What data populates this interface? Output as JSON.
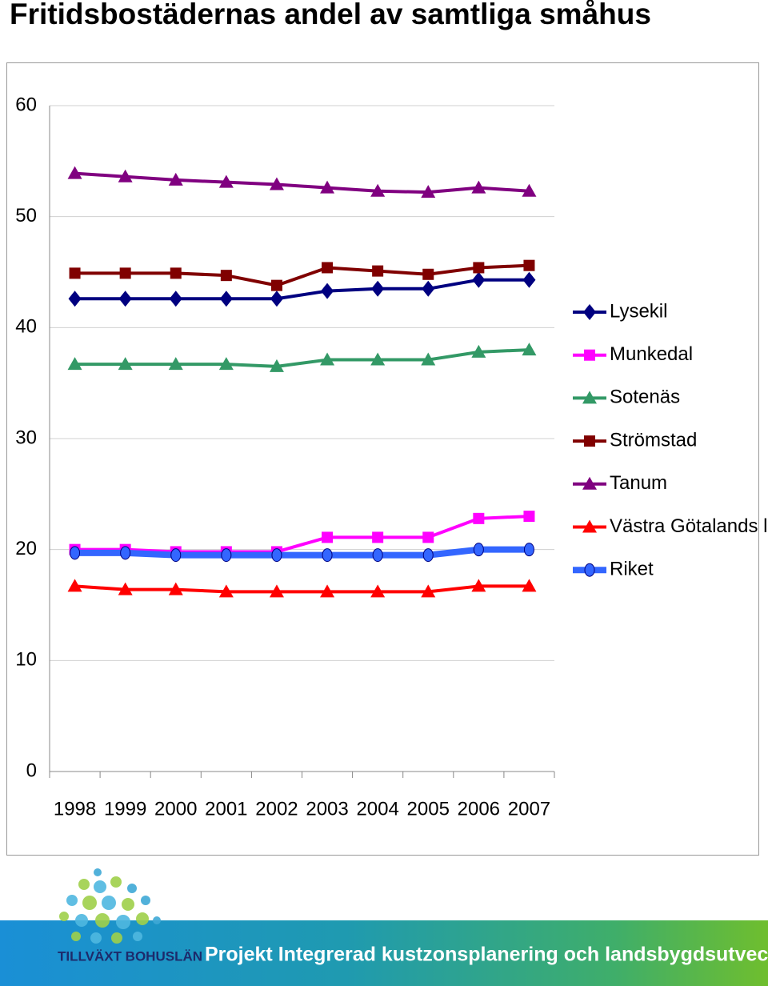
{
  "chart_data": {
    "type": "line",
    "title": "Fritidsbostädernas andel av samtliga småhus",
    "categories": [
      "1998",
      "1999",
      "2000",
      "2001",
      "2002",
      "2003",
      "2004",
      "2005",
      "2006",
      "2007"
    ],
    "ylim": [
      0,
      60
    ],
    "yticks": [
      0,
      10,
      20,
      30,
      40,
      50,
      60
    ],
    "grid": true,
    "legend": "right",
    "series": [
      {
        "name": "Lysekil",
        "color": "#000080",
        "marker": "diamond",
        "values": [
          42.6,
          42.6,
          42.6,
          42.6,
          42.6,
          43.3,
          43.5,
          43.5,
          44.3,
          44.3
        ]
      },
      {
        "name": "Munkedal",
        "color": "#ff00ff",
        "marker": "square",
        "values": [
          20.0,
          20.0,
          19.8,
          19.8,
          19.8,
          21.1,
          21.1,
          21.1,
          22.8,
          23.0
        ]
      },
      {
        "name": "Sotenäs",
        "color": "#339966",
        "marker": "triangle",
        "values": [
          36.7,
          36.7,
          36.7,
          36.7,
          36.5,
          37.1,
          37.1,
          37.1,
          37.8,
          38.0
        ]
      },
      {
        "name": "Strömstad",
        "color": "#800000",
        "marker": "square",
        "values": [
          44.9,
          44.9,
          44.9,
          44.7,
          43.8,
          45.4,
          45.1,
          44.8,
          45.4,
          45.6
        ]
      },
      {
        "name": "Tanum",
        "color": "#800080",
        "marker": "triangle",
        "values": [
          53.9,
          53.6,
          53.3,
          53.1,
          52.9,
          52.6,
          52.3,
          52.2,
          52.6,
          52.3
        ]
      },
      {
        "name": "Västra Götalands län",
        "color": "#ff0000",
        "marker": "triangle",
        "values": [
          16.7,
          16.4,
          16.4,
          16.2,
          16.2,
          16.2,
          16.2,
          16.2,
          16.7,
          16.7
        ]
      },
      {
        "name": "Riket",
        "color": "#3366ff",
        "marker": "circle",
        "width": 8,
        "values": [
          19.7,
          19.7,
          19.5,
          19.5,
          19.5,
          19.5,
          19.5,
          19.5,
          20.0,
          20.0
        ]
      }
    ]
  },
  "footer": {
    "logo": "TILLVÄXT BOHUSLÄN",
    "project": "Projekt Integrerad kustzonsplanering och landsbygdsutveckling"
  }
}
